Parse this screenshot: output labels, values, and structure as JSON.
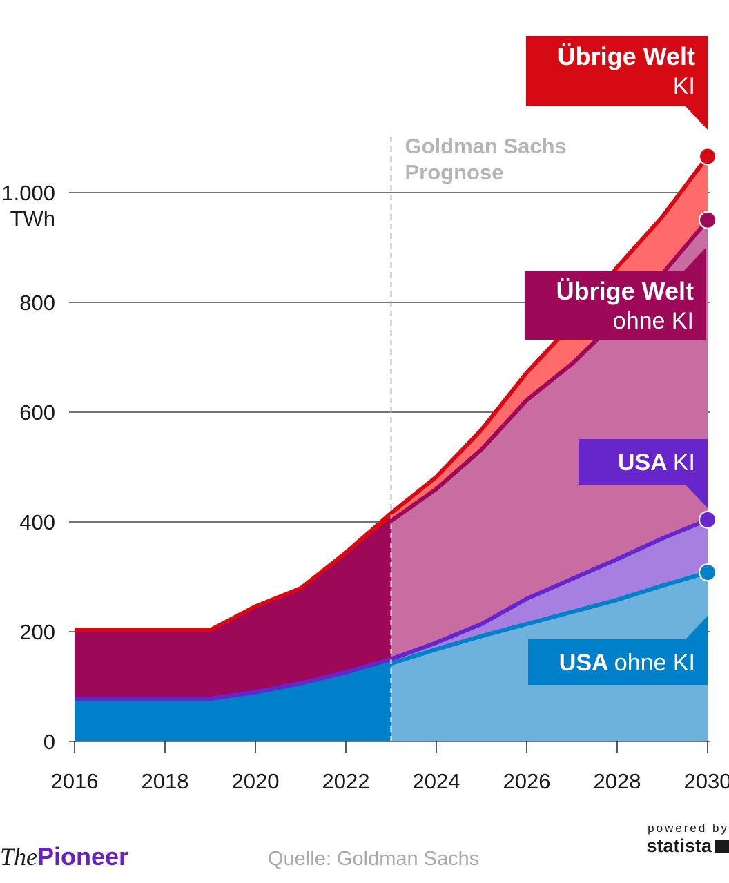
{
  "chart_data": {
    "type": "area",
    "x": [
      2016,
      2017,
      2018,
      2019,
      2020,
      2021,
      2022,
      2023,
      2024,
      2025,
      2026,
      2027,
      2028,
      2029,
      2030
    ],
    "stacked": true,
    "unit": "TWh",
    "ylim": [
      0,
      1100
    ],
    "y_ticks": [
      {
        "value": 0,
        "label": "0"
      },
      {
        "value": 200,
        "label": "200"
      },
      {
        "value": 400,
        "label": "400"
      },
      {
        "value": 600,
        "label": "600"
      },
      {
        "value": 800,
        "label": "800"
      },
      {
        "value": 1000,
        "label": "1.000"
      }
    ],
    "y_unit_label": "TWh",
    "x_ticks": [
      "2016",
      "2018",
      "2020",
      "2022",
      "2024",
      "2026",
      "2028",
      "2030"
    ],
    "forecast_start": 2023,
    "forecast_label": [
      "Goldman Sachs",
      "Prognose"
    ],
    "series": [
      {
        "name": "USA ohne KI",
        "label_bold": "USA",
        "label_light": "ohne KI",
        "color": "#0080c9",
        "forecast_color": "#6db2dd",
        "values": [
          70,
          70,
          70,
          70,
          82,
          98,
          118,
          142,
          168,
          192,
          214,
          236,
          258,
          284,
          308
        ]
      },
      {
        "name": "USA KI",
        "label_bold": "USA",
        "label_light": "KI",
        "color": "#6626c9",
        "forecast_color": "#a67fe0",
        "values": [
          8,
          8,
          8,
          8,
          8,
          8,
          8,
          8,
          12,
          22,
          46,
          60,
          74,
          86,
          96
        ]
      },
      {
        "name": "Übrige Welt ohne KI",
        "label_bold": "Übrige Welt",
        "label_light": "ohne KI",
        "color": "#9e0859",
        "forecast_color": "#c86ca1",
        "values": [
          120,
          120,
          120,
          120,
          150,
          165,
          208,
          252,
          280,
          318,
          362,
          392,
          436,
          482,
          546
        ]
      },
      {
        "name": "Übrige Welt KI",
        "label_bold": "Übrige Welt",
        "label_light": "KI",
        "color": "#d60a14",
        "forecast_color": "#ff6b6b",
        "values": [
          5,
          5,
          5,
          5,
          6,
          8,
          10,
          14,
          22,
          36,
          50,
          72,
          96,
          104,
          116
        ]
      }
    ],
    "source": "Quelle: Goldman Sachs"
  },
  "branding": {
    "logo_the": "The",
    "logo_pioneer": "Pioneer",
    "powered_by": "powered by",
    "statista": "statista"
  }
}
